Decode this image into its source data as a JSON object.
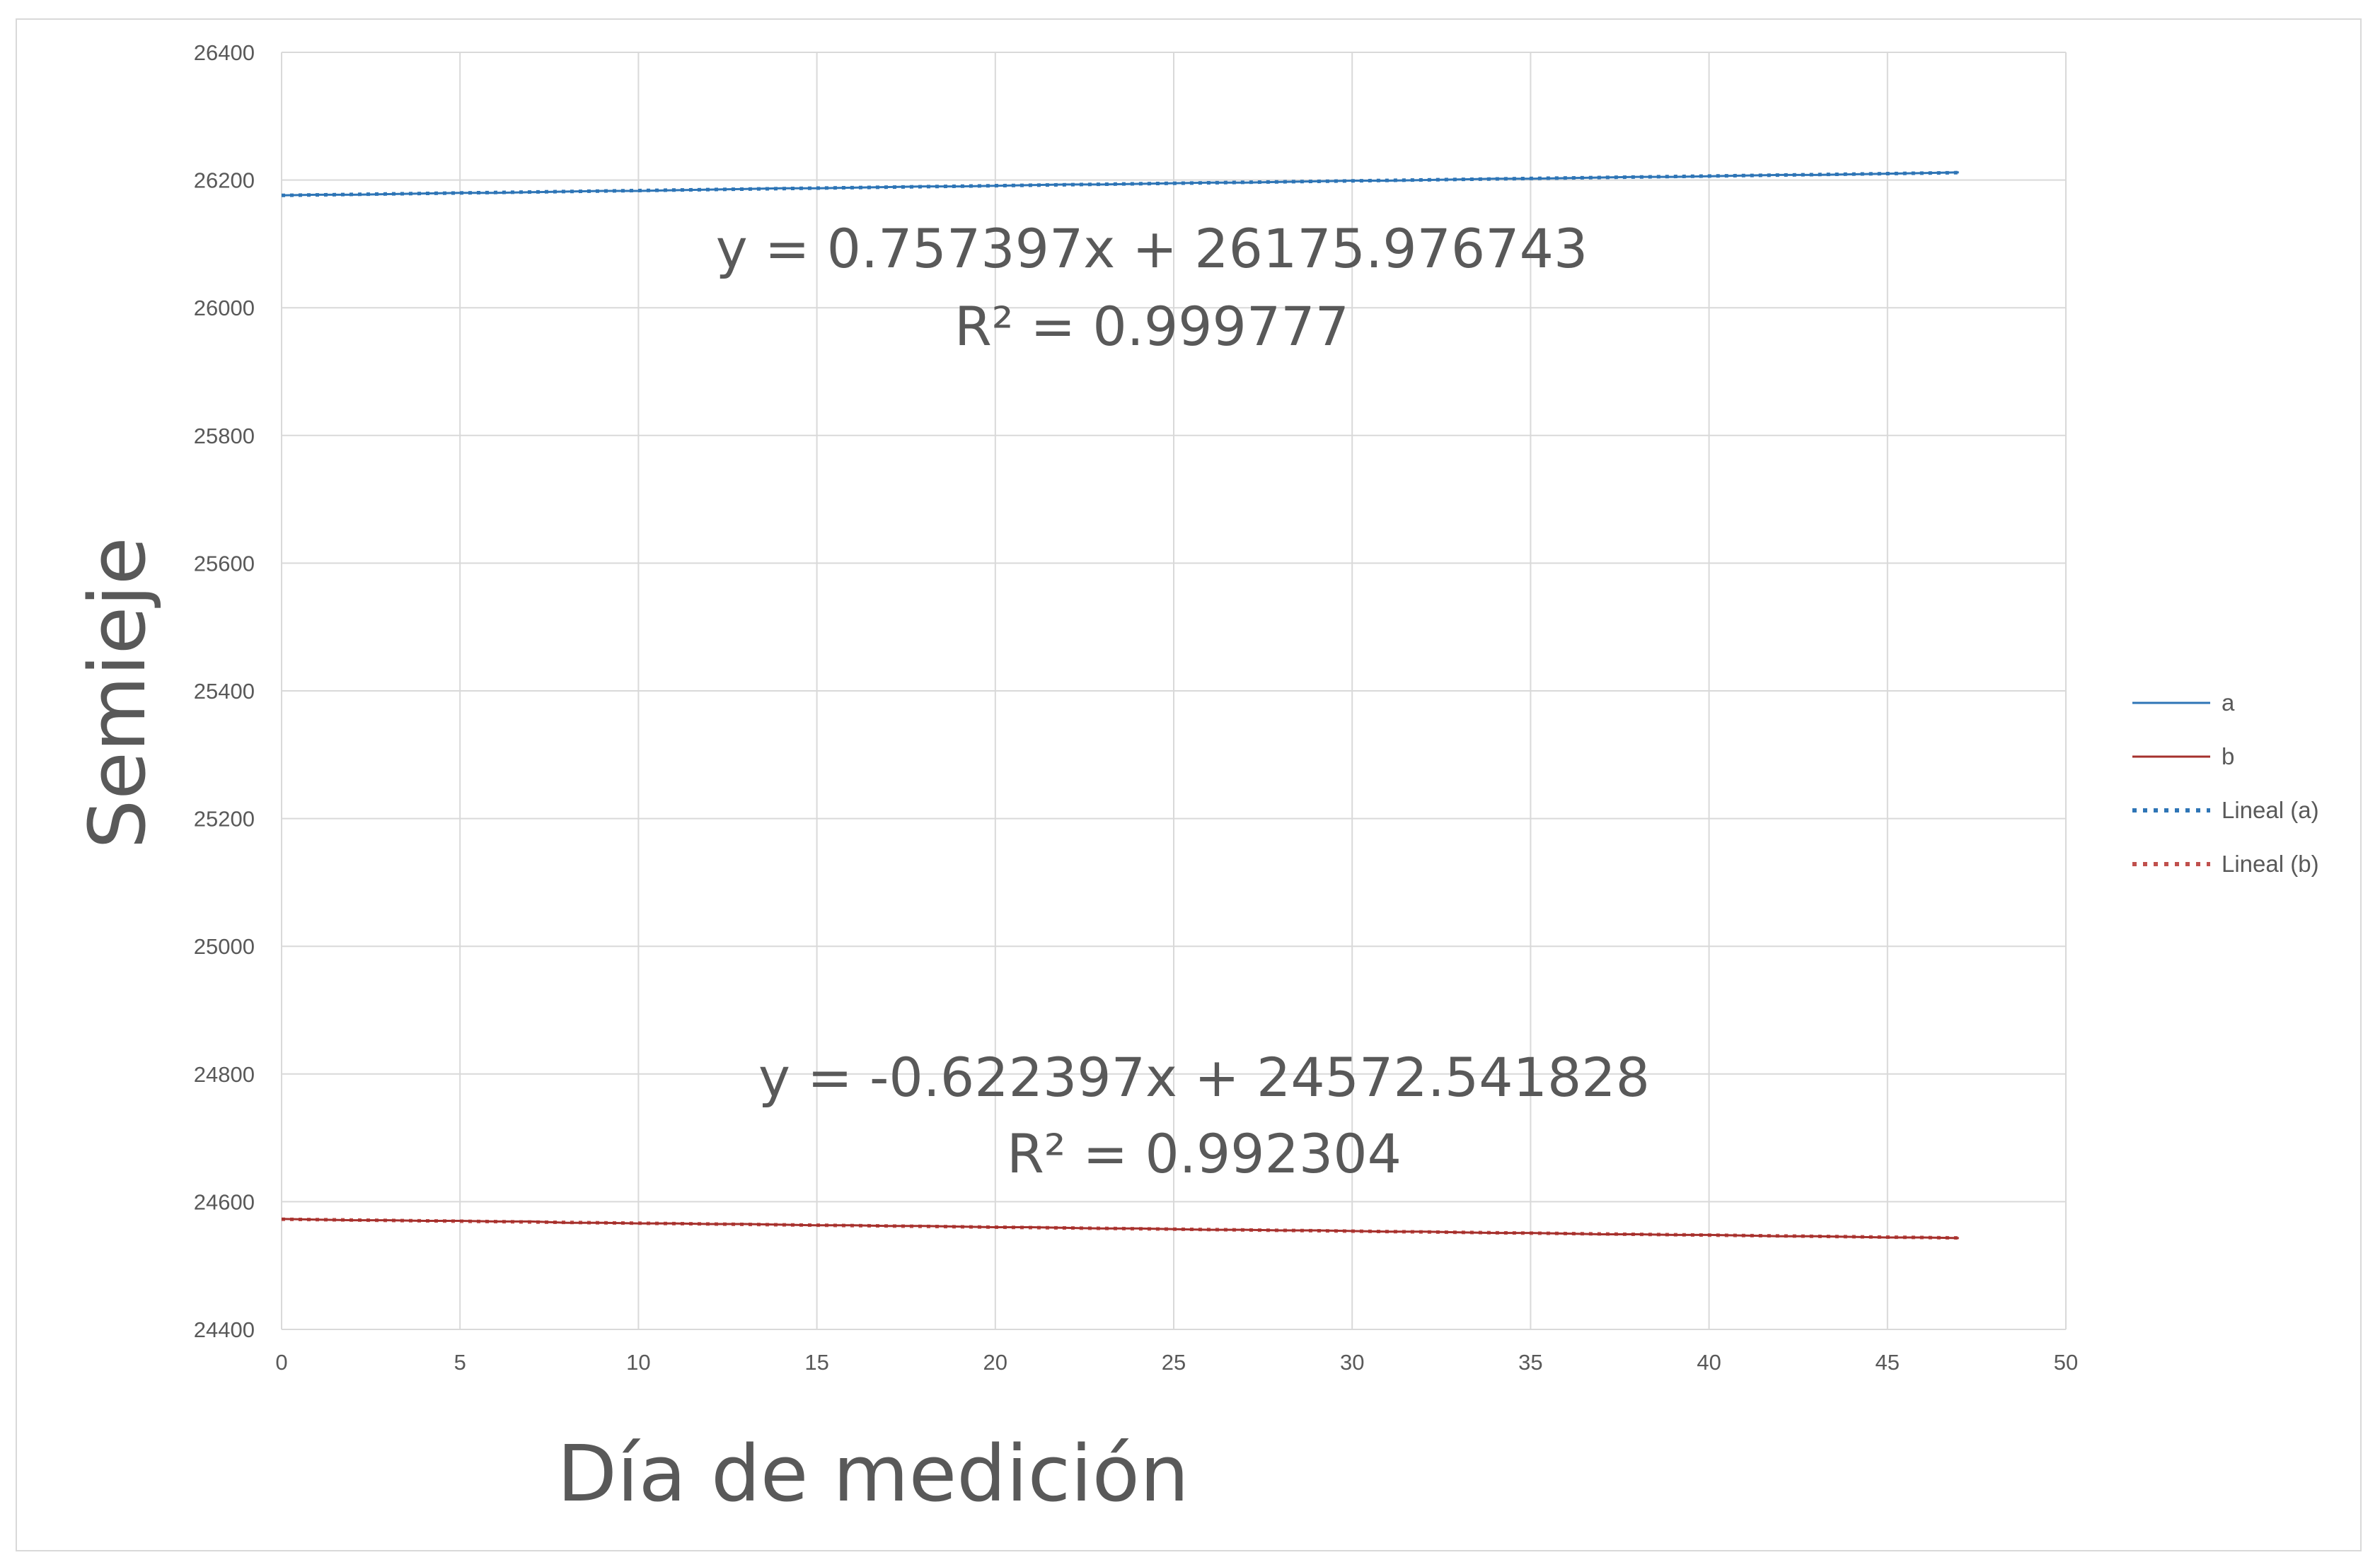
{
  "chart_data": {
    "type": "line",
    "xlabel": "Día de medición",
    "ylabel": "Semieje",
    "xlim": [
      0,
      50
    ],
    "ylim": [
      24400,
      26400
    ],
    "x_ticks": [
      "0",
      "5",
      "10",
      "15",
      "20",
      "25",
      "30",
      "35",
      "40",
      "45",
      "50"
    ],
    "y_ticks": [
      "24400",
      "24600",
      "24800",
      "25000",
      "25200",
      "25400",
      "25600",
      "25800",
      "26000",
      "26200",
      "26400"
    ],
    "grid": true,
    "legend_position": "right",
    "x": [
      0,
      1,
      2,
      3,
      4,
      5,
      6,
      7,
      8,
      9,
      10,
      11,
      12,
      13,
      14,
      15,
      16,
      17,
      18,
      19,
      20,
      21,
      22,
      23,
      24,
      25,
      26,
      27,
      28,
      29,
      30,
      31,
      32,
      33,
      34,
      35,
      36,
      37,
      38,
      39,
      40,
      41,
      42,
      43,
      44,
      45,
      46,
      47
    ],
    "series": [
      {
        "name": "a",
        "color": "#2e75b6",
        "values": [
          26176,
          26177,
          26177,
          26178,
          26179,
          26180,
          26180,
          26181,
          26182,
          26183,
          26183,
          26184,
          26185,
          26186,
          26187,
          26187,
          26188,
          26189,
          26190,
          26190,
          26191,
          26192,
          26193,
          26193,
          26194,
          26195,
          26196,
          26196,
          26197,
          26198,
          26199,
          26199,
          26200,
          26201,
          26202,
          26202,
          26203,
          26204,
          26205,
          26205,
          26206,
          26207,
          26208,
          26208,
          26209,
          26210,
          26211,
          26212
        ]
      },
      {
        "name": "b",
        "color": "#a5302c",
        "values": [
          24573,
          24572,
          24571,
          24571,
          24570,
          24570,
          24569,
          24569,
          24567,
          24567,
          24566,
          24566,
          24565,
          24565,
          24564,
          24563,
          24563,
          24562,
          24562,
          24561,
          24560,
          24560,
          24559,
          24558,
          24558,
          24557,
          24556,
          24556,
          24555,
          24555,
          24554,
          24553,
          24553,
          24552,
          24551,
          24551,
          24550,
          24549,
          24549,
          24548,
          24548,
          24547,
          24546,
          24546,
          24545,
          24544,
          24544,
          24543
        ]
      }
    ],
    "trendlines": [
      {
        "name": "Lineal (a)",
        "color": "#2e75b6",
        "slope": 0.757397,
        "intercept": 26175.976743,
        "equation": "y = 0.757397x + 26175.976743",
        "r2": "R² = 0.999777"
      },
      {
        "name": "Lineal (b)",
        "color": "#c0504d",
        "slope": -0.622397,
        "intercept": 24572.541828,
        "equation": "y = -0.622397x + 24572.541828",
        "r2": "R² = 0.992304"
      }
    ]
  }
}
